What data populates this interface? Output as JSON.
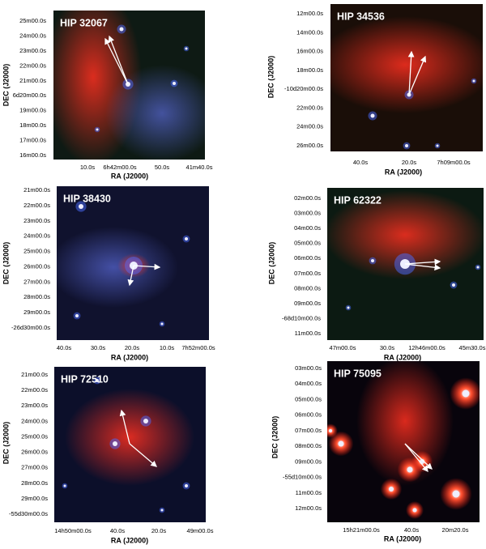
{
  "panels": [
    {
      "title": "HIP 32067",
      "yticks": [
        "25m00.0s",
        "24m00.0s",
        "23m00.0s",
        "22m00.0s",
        "21m00.0s",
        "6d20m00.0s",
        "19m00.0s",
        "18m00.0s",
        "17m00.0s",
        "16m00.0s"
      ],
      "xticks": [
        "10.0s",
        "6h42m00.0s",
        "50.0s",
        "41m40.0s"
      ],
      "xlabel": "RA (J2000)",
      "ylabel": "DEC (J2000)"
    },
    {
      "title": "HIP 34536",
      "yticks": [
        "12m00.0s",
        "14m00.0s",
        "16m00.0s",
        "18m00.0s",
        "-10d20m00.0s",
        "22m00.0s",
        "24m00.0s",
        "26m00.0s"
      ],
      "xticks": [
        "40.0s",
        "20.0s",
        "7h09m00.0s"
      ],
      "xlabel": "RA (J2000)",
      "ylabel": "DEC (J2000)"
    },
    {
      "title": "HIP 38430",
      "yticks": [
        "21m00.0s",
        "22m00.0s",
        "23m00.0s",
        "24m00.0s",
        "25m00.0s",
        "26m00.0s",
        "27m00.0s",
        "28m00.0s",
        "29m00.0s",
        "-26d30m00.0s"
      ],
      "xticks": [
        "40.0s",
        "30.0s",
        "20.0s",
        "10.0s",
        "7h52m00.0s"
      ],
      "xlabel": "RA (J2000)",
      "ylabel": "DEC (J2000)"
    },
    {
      "title": "HIP 62322",
      "yticks": [
        "02m00.0s",
        "03m00.0s",
        "04m00.0s",
        "05m00.0s",
        "06m00.0s",
        "07m00.0s",
        "08m00.0s",
        "09m00.0s",
        "-68d10m00.0s",
        "11m00.0s"
      ],
      "xticks": [
        "47m00.0s",
        "30.0s",
        "12h46m00.0s",
        "45m30.0s"
      ],
      "xlabel": "RA (J2000)",
      "ylabel": "DEC (J2000)"
    },
    {
      "title": "HIP 72510",
      "yticks": [
        "21m00.0s",
        "22m00.0s",
        "23m00.0s",
        "24m00.0s",
        "25m00.0s",
        "26m00.0s",
        "27m00.0s",
        "28m00.0s",
        "29m00.0s",
        "-55d30m00.0s"
      ],
      "xticks": [
        "14h50m00.0s",
        "40.0s",
        "20.0s",
        "49m00.0s"
      ],
      "xlabel": "RA (J2000)",
      "ylabel": "DEC (J2000)"
    },
    {
      "title": "HIP 75095",
      "yticks": [
        "03m00.0s",
        "04m00.0s",
        "05m00.0s",
        "06m00.0s",
        "07m00.0s",
        "08m00.0s",
        "09m00.0s",
        "-55d10m00.0s",
        "11m00.0s",
        "12m00.0s"
      ],
      "xticks": [
        "15h21m00.0s",
        "40.0s",
        "20m20.0s"
      ],
      "xlabel": "RA (J2000)",
      "ylabel": "DEC (J2000)"
    }
  ]
}
